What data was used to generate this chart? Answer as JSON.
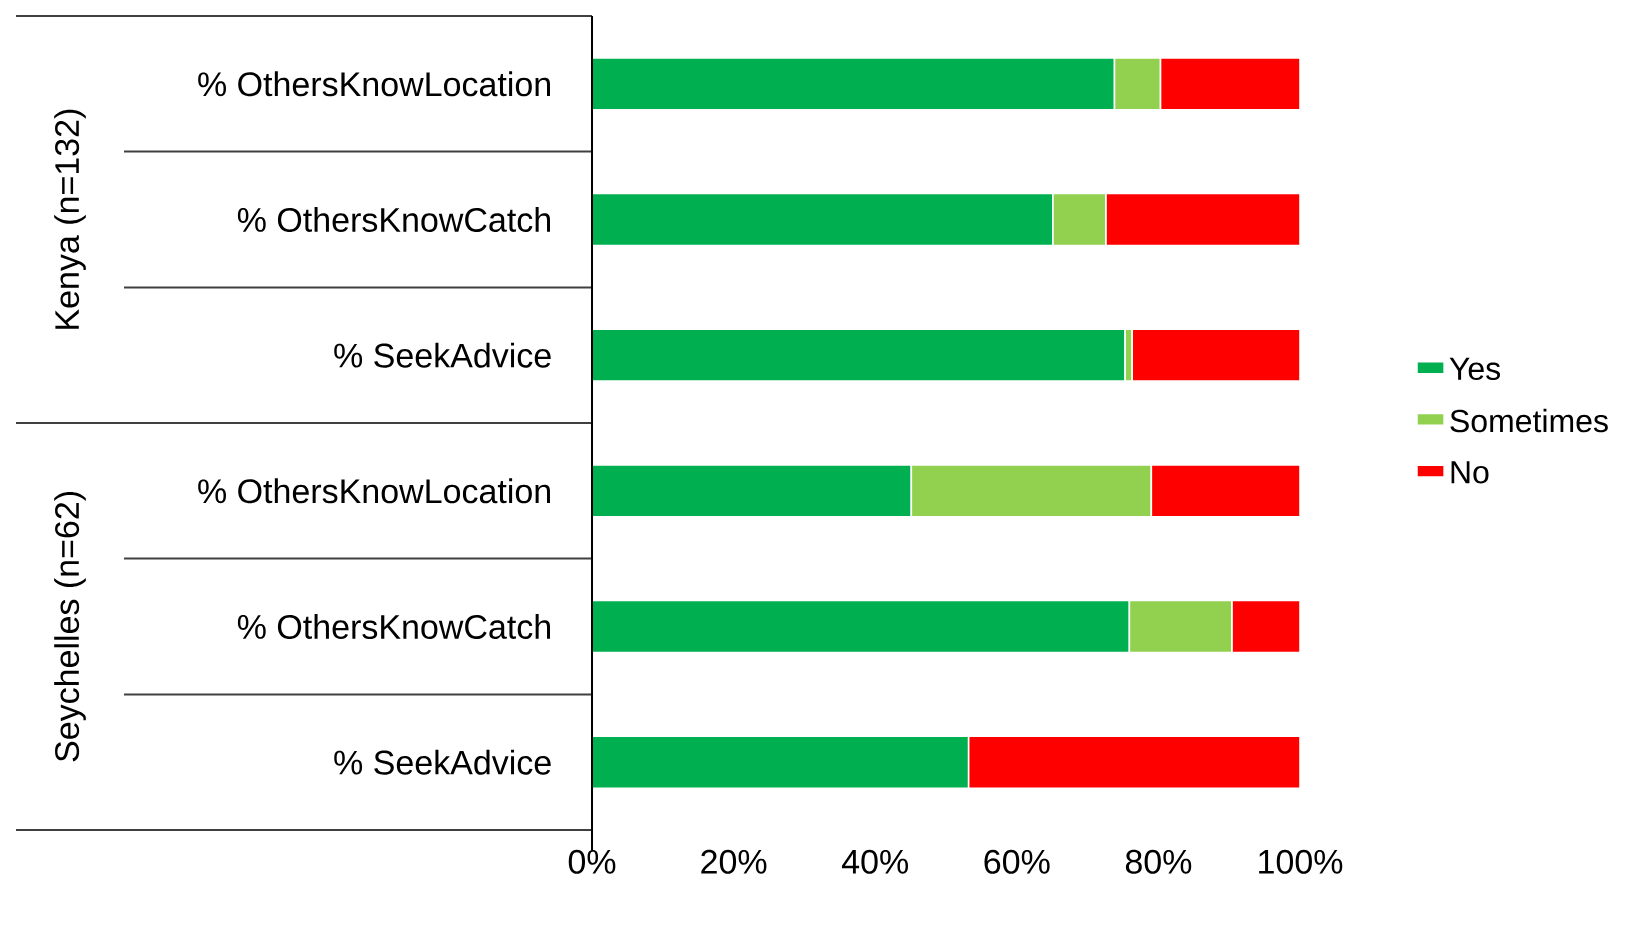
{
  "chart_data": {
    "type": "bar",
    "orientation": "horizontal",
    "stacked": true,
    "categories": [
      "% OthersKnowLocation",
      "% OthersKnowCatch",
      "% SeekAdvice",
      "% OthersKnowLocation",
      "% OthersKnowCatch",
      "% SeekAdvice"
    ],
    "series": [
      {
        "name": "Yes",
        "color": "#00b050",
        "values": [
          73.8,
          65.1,
          75.3,
          45.1,
          75.9,
          53.2
        ]
      },
      {
        "name": "Sometimes",
        "color": "#92d050",
        "values": [
          6.5,
          7.5,
          1.0,
          33.9,
          14.5,
          0
        ]
      },
      {
        "name": "No",
        "color": "#ff0000",
        "values": [
          19.7,
          27.4,
          23.7,
          21.0,
          9.6,
          46.8
        ]
      }
    ],
    "annotations": [
      "Kenya (n=132)",
      "Seychelles (n=62)"
    ],
    "xlim": [
      0,
      100
    ],
    "xticks": [
      {
        "value": 0,
        "label": "0%"
      },
      {
        "value": 20,
        "label": "20%"
      },
      {
        "value": 40,
        "label": "40%"
      },
      {
        "value": 60,
        "label": "60%"
      },
      {
        "value": 80,
        "label": "80%"
      },
      {
        "value": 100,
        "label": "100%"
      }
    ],
    "legend": "right",
    "grid": false
  }
}
